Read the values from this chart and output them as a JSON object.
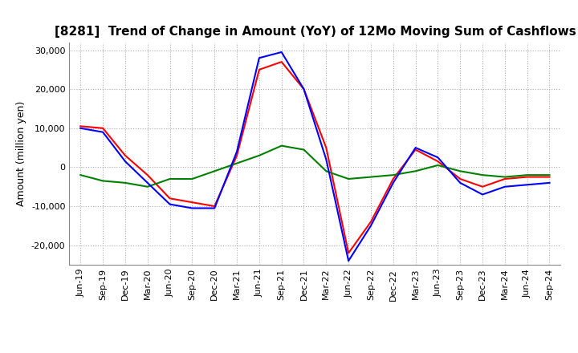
{
  "title": "[8281]  Trend of Change in Amount (YoY) of 12Mo Moving Sum of Cashflows",
  "ylabel": "Amount (million yen)",
  "ylim": [
    -25000,
    32000
  ],
  "yticks": [
    -20000,
    -10000,
    0,
    10000,
    20000,
    30000
  ],
  "x_labels": [
    "Jun-19",
    "Sep-19",
    "Dec-19",
    "Mar-20",
    "Jun-20",
    "Sep-20",
    "Dec-20",
    "Mar-21",
    "Jun-21",
    "Sep-21",
    "Dec-21",
    "Mar-22",
    "Jun-22",
    "Sep-22",
    "Dec-22",
    "Mar-23",
    "Jun-23",
    "Sep-23",
    "Dec-23",
    "Mar-24",
    "Jun-24",
    "Sep-24"
  ],
  "operating": [
    10500,
    10000,
    3000,
    -2000,
    -8000,
    -9000,
    -10000,
    3000,
    25000,
    27000,
    20000,
    5000,
    -22000,
    -14000,
    -3000,
    4500,
    1500,
    -3000,
    -5000,
    -3000,
    -2500,
    -2500
  ],
  "investing": [
    -2000,
    -3500,
    -4000,
    -5000,
    -3000,
    -3000,
    -1000,
    1000,
    3000,
    5500,
    4500,
    -1000,
    -3000,
    -2500,
    -2000,
    -1000,
    500,
    -1000,
    -2000,
    -2500,
    -2000,
    -2000
  ],
  "free": [
    10000,
    9000,
    1500,
    -4000,
    -9500,
    -10500,
    -10500,
    4000,
    28000,
    29500,
    20000,
    2000,
    -24000,
    -15000,
    -4000,
    5000,
    2500,
    -4000,
    -7000,
    -5000,
    -4500,
    -4000
  ],
  "operating_color": "#ff0000",
  "investing_color": "#008000",
  "free_color": "#0000ff",
  "background_color": "#ffffff",
  "grid_color": "#aaaaaa",
  "title_fontsize": 11,
  "tick_fontsize": 8,
  "ylabel_fontsize": 9,
  "legend_fontsize": 9
}
